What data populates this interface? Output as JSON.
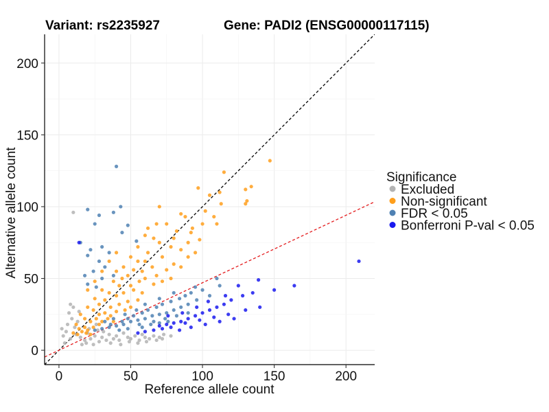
{
  "chart_data": {
    "type": "scatter",
    "title_left": "Variant: rs2235927",
    "title_right": "Gene: PADI2 (ENSG00000117115)",
    "xlabel": "Reference allele count",
    "ylabel": "Alternative allele count",
    "xlim": [
      -10,
      220
    ],
    "ylim": [
      -10,
      220
    ],
    "x_ticks": [
      0,
      50,
      100,
      150,
      200
    ],
    "y_ticks": [
      0,
      50,
      100,
      150,
      200
    ],
    "grid": true,
    "reference_lines": [
      {
        "slope": 1.0,
        "intercept": 0,
        "color": "#000000",
        "style": "dashed"
      },
      {
        "slope": 0.47,
        "intercept": 0,
        "color": "#e41a1c",
        "style": "dashed"
      }
    ],
    "legend": {
      "title": "Significance",
      "placement": "right",
      "entries": [
        {
          "label": "Excluded",
          "color": "#b3b3b3"
        },
        {
          "label": "Non-significant",
          "color": "#ff9f1c"
        },
        {
          "label": "FDR < 0.05",
          "color": "#4f81b3"
        },
        {
          "label": "Bonferroni P-val < 0.05",
          "color": "#1a1aee"
        }
      ]
    },
    "series": [
      {
        "name": "Excluded",
        "color": "#b3b3b3",
        "points": [
          [
            10,
            96
          ],
          [
            5,
            13
          ],
          [
            8,
            8
          ],
          [
            12,
            11
          ],
          [
            15,
            9
          ],
          [
            18,
            7
          ],
          [
            20,
            12
          ],
          [
            22,
            8
          ],
          [
            25,
            10
          ],
          [
            28,
            6
          ],
          [
            30,
            9
          ],
          [
            33,
            7
          ],
          [
            35,
            11
          ],
          [
            38,
            8
          ],
          [
            40,
            10
          ],
          [
            42,
            7
          ],
          [
            45,
            12
          ],
          [
            48,
            9
          ],
          [
            50,
            8
          ],
          [
            53,
            10
          ],
          [
            56,
            7
          ],
          [
            58,
            11
          ],
          [
            60,
            9
          ],
          [
            63,
            8
          ],
          [
            66,
            10
          ],
          [
            70,
            9
          ],
          [
            73,
            11
          ],
          [
            78,
            10
          ],
          [
            6,
            18
          ],
          [
            9,
            22
          ],
          [
            11,
            16
          ],
          [
            7,
            26
          ],
          [
            13,
            20
          ],
          [
            4,
            5
          ],
          [
            3,
            10
          ],
          [
            2,
            15
          ],
          [
            16,
            4
          ],
          [
            19,
            5
          ],
          [
            24,
            4
          ],
          [
            27,
            14
          ],
          [
            31,
            13
          ],
          [
            36,
            5
          ],
          [
            43,
            4
          ],
          [
            49,
            6
          ],
          [
            55,
            5
          ],
          [
            61,
            6
          ],
          [
            68,
            7
          ],
          [
            72,
            8
          ],
          [
            14,
            27
          ],
          [
            10,
            30
          ],
          [
            8,
            32
          ],
          [
            21,
            15
          ],
          [
            26,
            18
          ]
        ]
      },
      {
        "name": "Non-significant",
        "color": "#ff9f1c",
        "points": [
          [
            147,
            132
          ],
          [
            115,
            124
          ],
          [
            134,
            114
          ],
          [
            130,
            112
          ],
          [
            97,
            113
          ],
          [
            112,
            110
          ],
          [
            131,
            104
          ],
          [
            105,
            108
          ],
          [
            113,
            102
          ],
          [
            130,
            102
          ],
          [
            70,
            100
          ],
          [
            88,
            93
          ],
          [
            102,
            97
          ],
          [
            108,
            93
          ],
          [
            93,
            85
          ],
          [
            100,
            88
          ],
          [
            75,
            88
          ],
          [
            82,
            83
          ],
          [
            60,
            80
          ],
          [
            66,
            78
          ],
          [
            70,
            75
          ],
          [
            78,
            72
          ],
          [
            85,
            70
          ],
          [
            90,
            75
          ],
          [
            95,
            68
          ],
          [
            72,
            65
          ],
          [
            62,
            68
          ],
          [
            55,
            62
          ],
          [
            50,
            65
          ],
          [
            45,
            58
          ],
          [
            40,
            55
          ],
          [
            48,
            52
          ],
          [
            58,
            55
          ],
          [
            65,
            58
          ],
          [
            68,
            52
          ],
          [
            75,
            56
          ],
          [
            80,
            60
          ],
          [
            85,
            58
          ],
          [
            38,
            48
          ],
          [
            42,
            45
          ],
          [
            50,
            45
          ],
          [
            56,
            48
          ],
          [
            60,
            50
          ],
          [
            66,
            46
          ],
          [
            72,
            48
          ],
          [
            78,
            50
          ],
          [
            30,
            42
          ],
          [
            35,
            40
          ],
          [
            40,
            38
          ],
          [
            45,
            40
          ],
          [
            52,
            42
          ],
          [
            58,
            40
          ],
          [
            25,
            36
          ],
          [
            28,
            32
          ],
          [
            32,
            35
          ],
          [
            36,
            30
          ],
          [
            42,
            32
          ],
          [
            48,
            34
          ],
          [
            55,
            35
          ],
          [
            20,
            30
          ],
          [
            24,
            28
          ],
          [
            28,
            25
          ],
          [
            32,
            26
          ],
          [
            36,
            24
          ],
          [
            40,
            27
          ],
          [
            46,
            28
          ],
          [
            50,
            30
          ],
          [
            15,
            25
          ],
          [
            18,
            22
          ],
          [
            22,
            20
          ],
          [
            26,
            22
          ],
          [
            30,
            20
          ],
          [
            34,
            22
          ],
          [
            38,
            20
          ],
          [
            12,
            18
          ],
          [
            14,
            15
          ],
          [
            18,
            16
          ],
          [
            20,
            14
          ],
          [
            24,
            16
          ],
          [
            28,
            18
          ],
          [
            10,
            12
          ],
          [
            13,
            11
          ],
          [
            16,
            13
          ],
          [
            19,
            12
          ],
          [
            22,
            11
          ],
          [
            30,
            55
          ],
          [
            35,
            62
          ],
          [
            40,
            68
          ],
          [
            25,
            48
          ],
          [
            20,
            42
          ],
          [
            55,
            72
          ],
          [
            62,
            85
          ],
          [
            68,
            88
          ],
          [
            80,
            78
          ],
          [
            92,
            82
          ],
          [
            44,
            50
          ],
          [
            52,
            56
          ],
          [
            60,
            62
          ],
          [
            90,
            65
          ],
          [
            98,
            77
          ],
          [
            110,
            88
          ],
          [
            85,
            95
          ]
        ]
      },
      {
        "name": "FDR < 0.05",
        "color": "#4f81b3",
        "points": [
          [
            40,
            128
          ],
          [
            43,
            100
          ],
          [
            20,
            98
          ],
          [
            38,
            96
          ],
          [
            28,
            94
          ],
          [
            25,
            88
          ],
          [
            48,
            87
          ],
          [
            44,
            82
          ],
          [
            54,
            76
          ],
          [
            15,
            75
          ],
          [
            30,
            72
          ],
          [
            22,
            70
          ],
          [
            35,
            68
          ],
          [
            20,
            66
          ],
          [
            28,
            62
          ],
          [
            32,
            58
          ],
          [
            24,
            55
          ],
          [
            18,
            52
          ],
          [
            30,
            50
          ],
          [
            38,
            52
          ],
          [
            20,
            46
          ],
          [
            26,
            44
          ],
          [
            110,
            50
          ],
          [
            112,
            45
          ],
          [
            100,
            42
          ],
          [
            105,
            38
          ],
          [
            96,
            35
          ],
          [
            90,
            32
          ],
          [
            85,
            30
          ],
          [
            80,
            28
          ],
          [
            75,
            26
          ],
          [
            70,
            25
          ],
          [
            65,
            24
          ],
          [
            60,
            22
          ],
          [
            55,
            21
          ],
          [
            50,
            20
          ],
          [
            45,
            18
          ],
          [
            40,
            17
          ],
          [
            35,
            16
          ],
          [
            30,
            15
          ],
          [
            25,
            14
          ],
          [
            62,
            28
          ],
          [
            68,
            30
          ],
          [
            72,
            32
          ],
          [
            78,
            34
          ],
          [
            84,
            36
          ],
          [
            88,
            38
          ],
          [
            92,
            40
          ],
          [
            58,
            26
          ],
          [
            52,
            24
          ],
          [
            48,
            22
          ],
          [
            44,
            20
          ],
          [
            66,
            20
          ],
          [
            74,
            22
          ],
          [
            82,
            24
          ],
          [
            90,
            26
          ],
          [
            56,
            18
          ],
          [
            64,
            18
          ],
          [
            70,
            19
          ],
          [
            76,
            20
          ],
          [
            38,
            22
          ],
          [
            46,
            25
          ],
          [
            54,
            28
          ],
          [
            60,
            32
          ],
          [
            70,
            36
          ],
          [
            80,
            40
          ],
          [
            95,
            44
          ],
          [
            42,
            14
          ],
          [
            48,
            15
          ],
          [
            58,
            16
          ],
          [
            32,
            20
          ],
          [
            36,
            18
          ]
        ]
      },
      {
        "name": "Bonferroni P-val < 0.05",
        "color": "#1a1aee",
        "points": [
          [
            209,
            62
          ],
          [
            14,
            75
          ],
          [
            139,
            49
          ],
          [
            164,
            45
          ],
          [
            125,
            45
          ],
          [
            150,
            42
          ],
          [
            135,
            40
          ],
          [
            128,
            38
          ],
          [
            120,
            35
          ],
          [
            115,
            32
          ],
          [
            110,
            30
          ],
          [
            105,
            28
          ],
          [
            100,
            26
          ],
          [
            95,
            24
          ],
          [
            90,
            22
          ],
          [
            85,
            20
          ],
          [
            80,
            19
          ],
          [
            75,
            18
          ],
          [
            70,
            17
          ],
          [
            140,
            30
          ],
          [
            130,
            28
          ],
          [
            118,
            25
          ],
          [
            108,
            23
          ],
          [
            98,
            21
          ],
          [
            88,
            19
          ],
          [
            78,
            16
          ],
          [
            72,
            15
          ],
          [
            102,
            18
          ],
          [
            112,
            20
          ],
          [
            122,
            22
          ],
          [
            92,
            16
          ],
          [
            84,
            14
          ],
          [
            66,
            14
          ],
          [
            60,
            13
          ],
          [
            55,
            12
          ],
          [
            96,
            30
          ],
          [
            86,
            26
          ],
          [
            76,
            24
          ],
          [
            104,
            34
          ],
          [
            116,
            38
          ]
        ]
      }
    ]
  }
}
